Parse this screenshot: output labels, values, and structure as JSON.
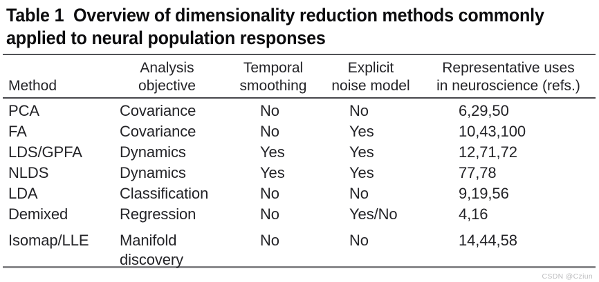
{
  "title": {
    "line1": "Table 1  Overview of dimensionality reduction methods commonly",
    "line2": "applied to neural population responses"
  },
  "table": {
    "columns": [
      {
        "id": "method",
        "line1": "Method",
        "line2": ""
      },
      {
        "id": "objective",
        "line1": "Analysis",
        "line2": "objective"
      },
      {
        "id": "smoothing",
        "line1": "Temporal",
        "line2": "smoothing"
      },
      {
        "id": "noise",
        "line1": "Explicit",
        "line2": "noise model"
      },
      {
        "id": "refs",
        "line1": "Representative uses",
        "line2": "in neuroscience (refs.)"
      }
    ],
    "rows": [
      {
        "method": "PCA",
        "objective": "Covariance",
        "smoothing": "No",
        "noise": "No",
        "refs": "6,29,50"
      },
      {
        "method": "FA",
        "objective": "Covariance",
        "smoothing": "No",
        "noise": "Yes",
        "refs": "10,43,100"
      },
      {
        "method": "LDS/GPFA",
        "objective": "Dynamics",
        "smoothing": "Yes",
        "noise": "Yes",
        "refs": "12,71,72"
      },
      {
        "method": "NLDS",
        "objective": "Dynamics",
        "smoothing": "Yes",
        "noise": "Yes",
        "refs": "77,78"
      },
      {
        "method": "LDA",
        "objective": "Classification",
        "smoothing": "No",
        "noise": "No",
        "refs": "9,19,56"
      },
      {
        "method": "Demixed",
        "objective": "Regression",
        "smoothing": "No",
        "noise": "Yes/No",
        "refs": "4,16"
      },
      {
        "method": "Isomap/LLE",
        "objective": "Manifold discovery",
        "smoothing": "No",
        "noise": "No",
        "refs": "14,44,58"
      }
    ]
  },
  "watermark": "CSDN @Cziun",
  "colors": {
    "background": "#ffffff",
    "title": "#0c0c0e",
    "text": "#232327",
    "rule_top": "#515256",
    "rule_mid": "#47474b",
    "rule_bottom": "#8a8a8d",
    "watermark": "#bdbdbf"
  }
}
